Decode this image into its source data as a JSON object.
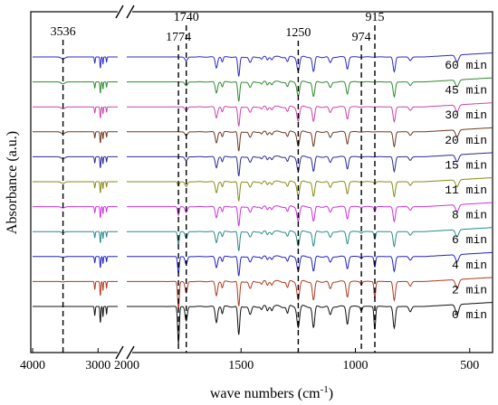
{
  "chart_data": {
    "type": "line",
    "xlabel": "wave numbers (cm",
    "xlabel_sup": "-1",
    "xlabel_end": ")",
    "ylabel": "Absorbance (a.u.)",
    "x_axis_break": {
      "left_range": [
        4000,
        2700
      ],
      "right_range": [
        2000,
        400
      ]
    },
    "x_ticks": [
      {
        "value": 4000,
        "label": "4000"
      },
      {
        "value": 3000,
        "label": "3000"
      },
      {
        "value": 2000,
        "label": "2000"
      },
      {
        "value": 1500,
        "label": "1500"
      },
      {
        "value": 1000,
        "label": "1000"
      },
      {
        "value": 500,
        "label": "500"
      }
    ],
    "reference_lines": [
      {
        "x": 3536,
        "label": "3536"
      },
      {
        "x": 1774,
        "label": "1774"
      },
      {
        "x": 1740,
        "label": "1740"
      },
      {
        "x": 1250,
        "label": "1250"
      },
      {
        "x": 974,
        "label": "974"
      },
      {
        "x": 915,
        "label": "915"
      }
    ],
    "series": [
      {
        "name": "60 min",
        "color": "#2b2bc9"
      },
      {
        "name": "45 min",
        "color": "#2e8b2e"
      },
      {
        "name": "30 min",
        "color": "#cc44aa"
      },
      {
        "name": "20 min",
        "color": "#6b3a22"
      },
      {
        "name": "15 min",
        "color": "#2a2a9a"
      },
      {
        "name": "11 min",
        "color": "#8a8a1a"
      },
      {
        "name": "8 min",
        "color": "#cc33dd"
      },
      {
        "name": "6 min",
        "color": "#2e8a8a"
      },
      {
        "name": "4 min",
        "color": "#2222cc"
      },
      {
        "name": "2 min",
        "color": "#b03a22"
      },
      {
        "name": "0 min",
        "color": "#111111"
      }
    ],
    "grid": false
  }
}
